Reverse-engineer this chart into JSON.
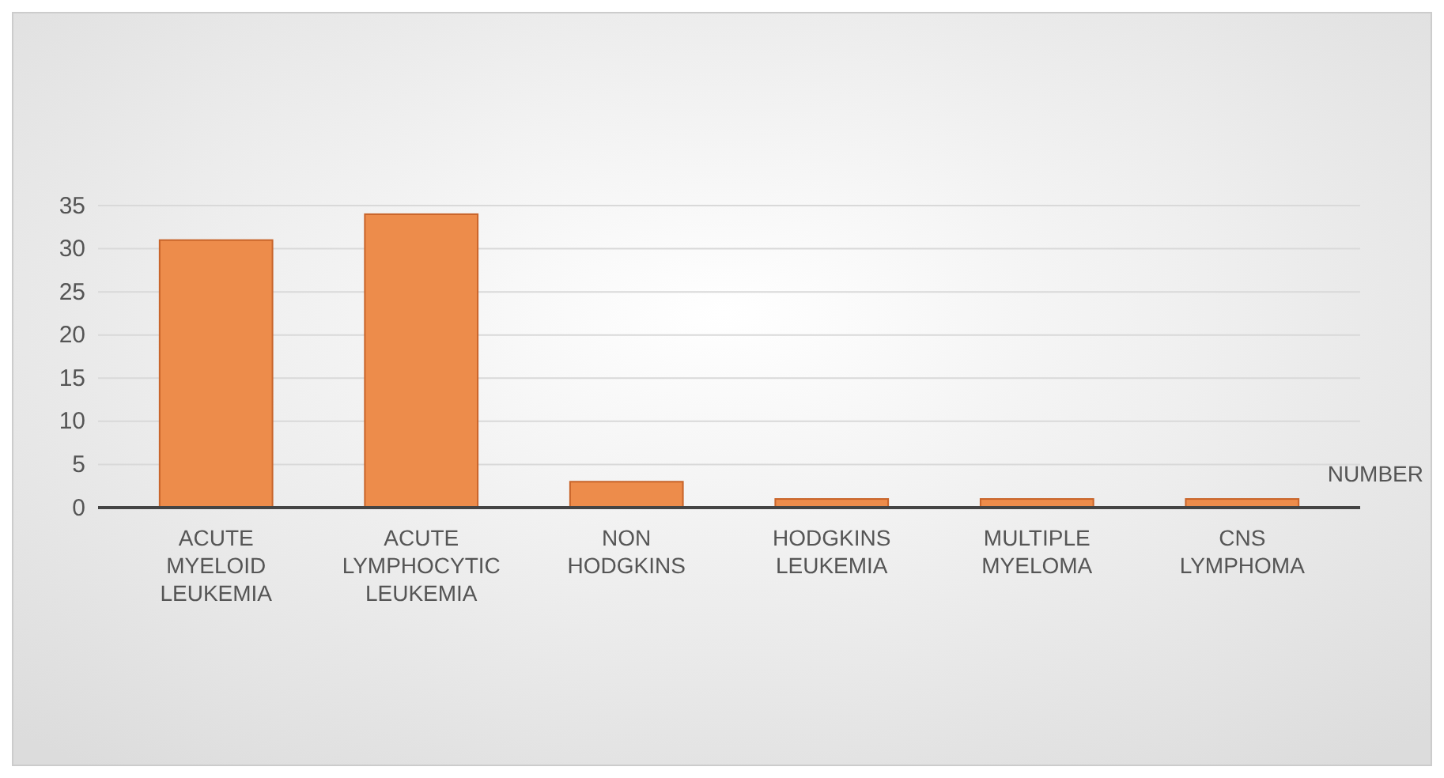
{
  "chart_data": {
    "type": "bar",
    "categories": [
      "ACUTE MYELOID LEUKEMIA",
      "ACUTE LYMPHOCYTIC LEUKEMIA",
      "NON HODGKINS",
      "HODGKINS LEUKEMIA",
      "MULTIPLE MYELOMA",
      "CNS LYMPHOMA"
    ],
    "series": [
      {
        "name": "NUMBER",
        "color": "#ed8c4b",
        "values": [
          31,
          34,
          3,
          1,
          1,
          1
        ]
      }
    ],
    "ylim": [
      0,
      35
    ],
    "yticks": [
      0,
      5,
      10,
      15,
      20,
      25,
      30,
      35
    ],
    "grid": "y",
    "legend": "right"
  }
}
